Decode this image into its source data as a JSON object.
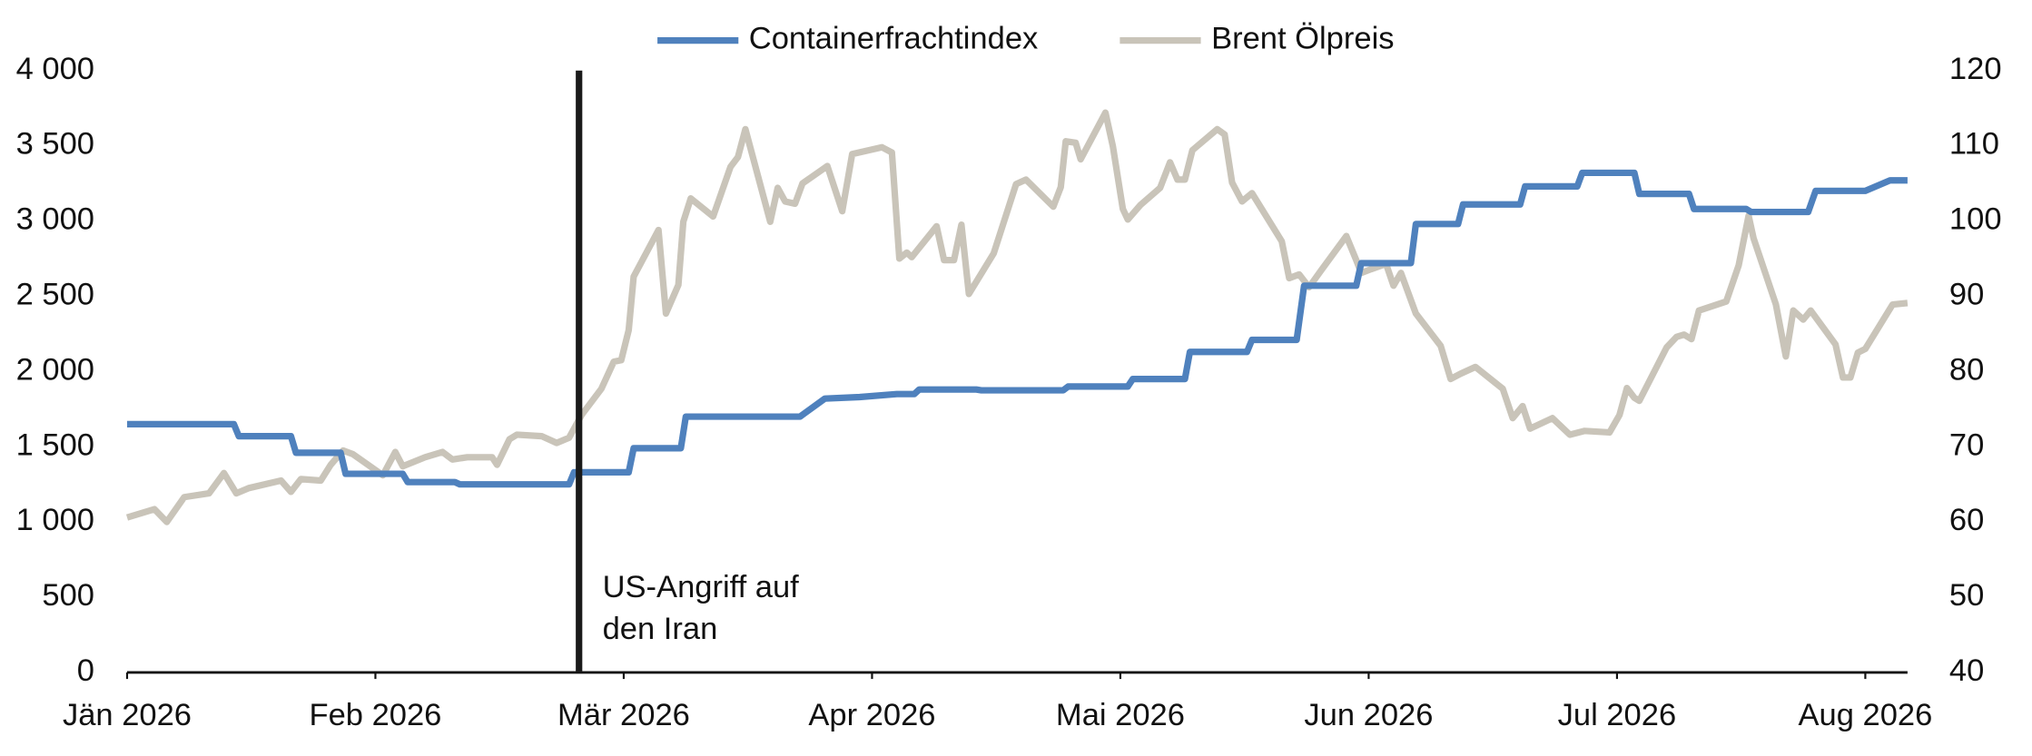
{
  "chart_data": {
    "type": "line",
    "legend": "top",
    "xlim": [
      0,
      7.17
    ],
    "xticks": [
      {
        "value": 0,
        "label": "Jän 2026"
      },
      {
        "value": 1,
        "label": "Feb 2026"
      },
      {
        "value": 2,
        "label": "Mär 2026"
      },
      {
        "value": 3,
        "label": "Apr 2026"
      },
      {
        "value": 4,
        "label": "Mai 2026"
      },
      {
        "value": 5,
        "label": "Jun 2026"
      },
      {
        "value": 6,
        "label": "Jul 2026"
      },
      {
        "value": 7,
        "label": "Aug 2026"
      }
    ],
    "ylim": [
      0,
      4000
    ],
    "yticks": [
      0,
      500,
      {
        "value": 1000,
        "label": "1 000"
      },
      {
        "value": 1500,
        "label": "1 500"
      },
      {
        "value": 2000,
        "label": "2 000"
      },
      {
        "value": 2500,
        "label": "2 500"
      },
      {
        "value": 3000,
        "label": "3 000"
      },
      {
        "value": 3500,
        "label": "3 500"
      },
      {
        "value": 4000,
        "label": "4 000"
      }
    ],
    "y2lim": [
      40,
      120
    ],
    "y2ticks": [
      40,
      50,
      60,
      70,
      80,
      90,
      100,
      110,
      120
    ],
    "annotations": [
      {
        "x": 1.82,
        "lines": [
          "US-Angriff auf",
          "den Iran"
        ]
      }
    ],
    "series": [
      {
        "name": "Containerfrachtindex",
        "color": "#4f81bd",
        "x": [
          0,
          0.43,
          0.45,
          0.66,
          0.68,
          0.86,
          0.88,
          1.11,
          1.13,
          1.32,
          1.34,
          1.78,
          1.8,
          2.02,
          2.04,
          2.23,
          2.25,
          2.71,
          2.81,
          2.95,
          3.1,
          3.17,
          3.19,
          3.42,
          3.44,
          3.77,
          3.79,
          4.03,
          4.05,
          4.26,
          4.28,
          4.51,
          4.53,
          4.71,
          4.74,
          4.95,
          4.97,
          5.17,
          5.19,
          5.36,
          5.38,
          5.61,
          5.63,
          5.84,
          5.86,
          6.07,
          6.09,
          6.29,
          6.31,
          6.52,
          6.54,
          6.77,
          6.8,
          7,
          7.1,
          7.17
        ],
        "values": [
          1650,
          1650,
          1570,
          1570,
          1460,
          1460,
          1320,
          1320,
          1265,
          1265,
          1250,
          1250,
          1330,
          1330,
          1490,
          1490,
          1700,
          1700,
          1820,
          1830,
          1850,
          1850,
          1880,
          1880,
          1875,
          1875,
          1900,
          1900,
          1950,
          1950,
          2130,
          2130,
          2210,
          2210,
          2570,
          2570,
          2720,
          2720,
          2980,
          2980,
          3110,
          3110,
          3230,
          3230,
          3320,
          3320,
          3180,
          3180,
          3080,
          3080,
          3060,
          3060,
          3200,
          3200,
          3270,
          3270
        ]
      },
      {
        "name": "Brent Ölpreis",
        "color": "#c9c4b9",
        "axis": "y2",
        "x": [
          0,
          0.11,
          0.16,
          0.23,
          0.33,
          0.39,
          0.44,
          0.49,
          0.62,
          0.66,
          0.7,
          0.78,
          0.82,
          0.87,
          0.91,
          1.03,
          1.08,
          1.11,
          1.2,
          1.27,
          1.31,
          1.37,
          1.47,
          1.49,
          1.54,
          1.57,
          1.67,
          1.73,
          1.78,
          1.83,
          1.91,
          1.96,
          1.99,
          2.02,
          2.04,
          2.14,
          2.17,
          2.22,
          2.24,
          2.27,
          2.36,
          2.43,
          2.46,
          2.49,
          2.59,
          2.62,
          2.65,
          2.69,
          2.72,
          2.82,
          2.88,
          2.92,
          3.04,
          3.08,
          3.11,
          3.14,
          3.16,
          3.26,
          3.29,
          3.33,
          3.36,
          3.39,
          3.49,
          3.58,
          3.62,
          3.73,
          3.76,
          3.78,
          3.82,
          3.84,
          3.94,
          3.97,
          4.01,
          4.03,
          4.08,
          4.16,
          4.2,
          4.23,
          4.26,
          4.29,
          4.39,
          4.42,
          4.45,
          4.49,
          4.53,
          4.65,
          4.68,
          4.72,
          4.76,
          4.81,
          4.87,
          4.91,
          4.95,
          4.97,
          5.01,
          5.07,
          5.1,
          5.13,
          5.19,
          5.29,
          5.33,
          5.37,
          5.43,
          5.54,
          5.58,
          5.62,
          5.65,
          5.74,
          5.81,
          5.87,
          5.97,
          6.01,
          6.04,
          6.07,
          6.09,
          6.2,
          6.24,
          6.27,
          6.3,
          6.33,
          6.44,
          6.49,
          6.53,
          6.55,
          6.64,
          6.68,
          6.71,
          6.75,
          6.78,
          6.88,
          6.91,
          6.94,
          6.97,
          7,
          7.11,
          7.17
        ],
        "values": [
          60.6,
          61.7,
          60,
          63.3,
          63.8,
          66.5,
          63.8,
          64.5,
          65.5,
          64,
          65.7,
          65.5,
          67.6,
          69.5,
          69,
          66.2,
          69.3,
          67.4,
          68.6,
          69.3,
          68.3,
          68.6,
          68.6,
          67.6,
          71,
          71.6,
          71.4,
          70.5,
          71.2,
          74.2,
          77.7,
          81.3,
          81.5,
          85.5,
          92.6,
          98.8,
          87.7,
          91.5,
          99.9,
          103,
          100.6,
          107.2,
          108.5,
          112.2,
          99.9,
          104.4,
          102.6,
          102.3,
          105,
          107.3,
          101.3,
          108.9,
          109.8,
          109.1,
          95,
          95.8,
          95.2,
          99.3,
          94.8,
          94.8,
          99.5,
          90.3,
          95.7,
          104.9,
          105.5,
          101.9,
          104.5,
          110.6,
          110.4,
          108.2,
          114.4,
          109.9,
          101.6,
          100.2,
          102.1,
          104.4,
          107.8,
          105.5,
          105.5,
          109.4,
          112.2,
          111.5,
          105.1,
          102.6,
          103.7,
          97.3,
          92.4,
          92.9,
          91.2,
          93.5,
          96.2,
          98,
          94.8,
          93.1,
          93.6,
          94.3,
          91.4,
          93.1,
          87.7,
          83.4,
          79,
          79.7,
          80.6,
          77.7,
          73.8,
          75.4,
          72.4,
          73.8,
          71.6,
          72.1,
          71.9,
          74.2,
          77.8,
          76.5,
          76.1,
          83.2,
          84.6,
          84.9,
          84.3,
          88.1,
          89.3,
          94.1,
          100.7,
          97.7,
          88.9,
          82,
          88.1,
          86.9,
          88.1,
          83.6,
          79.2,
          79.2,
          82.5,
          83,
          88.9,
          89.1
        ]
      }
    ]
  }
}
